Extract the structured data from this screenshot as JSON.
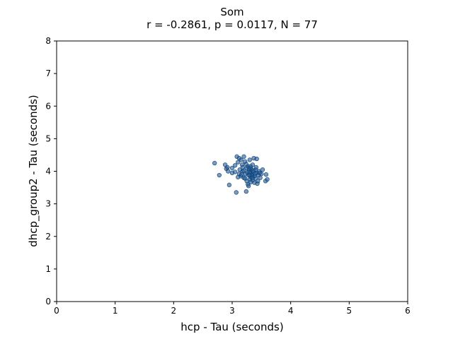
{
  "chart_data": {
    "type": "scatter",
    "title": "Som",
    "subtitle": "r = -0.2861, p = 0.0117, N = 77",
    "xlabel": "hcp - Tau (seconds)",
    "ylabel": "dhcp_group2 - Tau (seconds)",
    "xlim": [
      0,
      6
    ],
    "ylim": [
      0,
      8
    ],
    "xticks": [
      "0",
      "1",
      "2",
      "3",
      "4",
      "5",
      "6"
    ],
    "yticks": [
      "0",
      "1",
      "2",
      "3",
      "4",
      "5",
      "6",
      "7",
      "8"
    ],
    "grid": false,
    "marker_color": "#1f5a96",
    "marker_edge_color": "#0b3d73",
    "points": [
      [
        2.7,
        4.25
      ],
      [
        2.78,
        3.88
      ],
      [
        2.88,
        4.2
      ],
      [
        2.9,
        4.08
      ],
      [
        2.92,
        4.12
      ],
      [
        2.93,
        4.0
      ],
      [
        2.95,
        3.58
      ],
      [
        3.0,
        3.95
      ],
      [
        3.05,
        4.18
      ],
      [
        3.07,
        3.35
      ],
      [
        3.08,
        4.45
      ],
      [
        3.1,
        4.28
      ],
      [
        3.12,
        3.92
      ],
      [
        3.13,
        4.05
      ],
      [
        3.15,
        4.35
      ],
      [
        3.15,
        3.85
      ],
      [
        3.17,
        4.2
      ],
      [
        3.18,
        4.0
      ],
      [
        3.2,
        4.45
      ],
      [
        3.2,
        3.8
      ],
      [
        3.22,
        4.3
      ],
      [
        3.23,
        3.92
      ],
      [
        3.24,
        3.38
      ],
      [
        3.25,
        4.1
      ],
      [
        3.25,
        3.7
      ],
      [
        3.27,
        4.15
      ],
      [
        3.27,
        3.6
      ],
      [
        3.28,
        3.88
      ],
      [
        3.29,
        4.0
      ],
      [
        3.3,
        4.35
      ],
      [
        3.3,
        3.75
      ],
      [
        3.31,
        3.95
      ],
      [
        3.32,
        4.1
      ],
      [
        3.32,
        3.82
      ],
      [
        3.33,
        4.05
      ],
      [
        3.34,
        3.9
      ],
      [
        3.35,
        3.72
      ],
      [
        3.35,
        4.2
      ],
      [
        3.36,
        3.98
      ],
      [
        3.37,
        4.4
      ],
      [
        3.38,
        3.85
      ],
      [
        3.38,
        3.65
      ],
      [
        3.4,
        4.05
      ],
      [
        3.4,
        3.78
      ],
      [
        3.42,
        4.38
      ],
      [
        3.42,
        3.95
      ],
      [
        3.43,
        3.62
      ],
      [
        3.45,
        3.88
      ],
      [
        3.46,
        4.0
      ],
      [
        3.48,
        3.8
      ],
      [
        3.5,
        3.92
      ],
      [
        3.52,
        4.05
      ],
      [
        3.57,
        3.7
      ],
      [
        3.58,
        3.9
      ],
      [
        3.6,
        3.75
      ],
      [
        3.05,
        3.98
      ],
      [
        3.1,
        3.82
      ],
      [
        3.18,
        4.12
      ],
      [
        3.22,
        3.78
      ],
      [
        3.26,
        3.96
      ],
      [
        3.28,
        3.55
      ],
      [
        3.31,
        4.15
      ],
      [
        3.34,
        3.86
      ],
      [
        3.36,
        4.02
      ],
      [
        3.39,
        3.93
      ],
      [
        3.41,
        4.12
      ],
      [
        3.44,
        3.7
      ],
      [
        3.3,
        3.88
      ],
      [
        3.12,
        4.4
      ],
      [
        3.0,
        4.1
      ],
      [
        3.2,
        4.02
      ],
      [
        3.35,
        3.8
      ],
      [
        3.24,
        4.22
      ],
      [
        3.16,
        3.9
      ],
      [
        3.32,
        3.67
      ],
      [
        3.47,
        3.95
      ],
      [
        3.29,
        4.08
      ]
    ]
  }
}
